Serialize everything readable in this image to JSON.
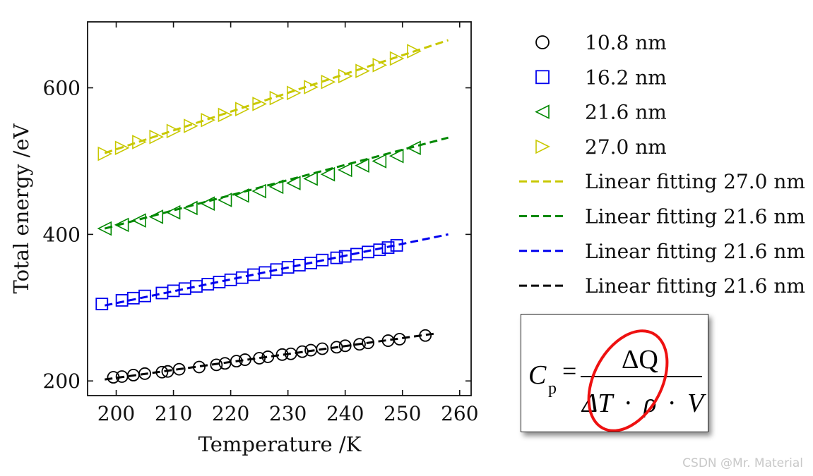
{
  "chart_data": {
    "type": "scatter",
    "xlabel": "Temperature /K",
    "ylabel": "Total energy /eV",
    "xlim": [
      195,
      262
    ],
    "ylim": [
      180,
      690
    ],
    "xticks": [
      200,
      210,
      220,
      230,
      240,
      250,
      260
    ],
    "yticks": [
      200,
      400,
      600
    ],
    "grid": false,
    "legend_position": "right",
    "series": [
      {
        "name": "10.8 nm",
        "marker": "circle",
        "color": "#000000",
        "x": [
          199.5,
          201,
          203,
          205,
          208,
          209,
          211,
          214.5,
          217.5,
          219,
          221,
          222.5,
          225,
          226.5,
          229,
          230.5,
          232.5,
          234,
          236,
          238.5,
          240,
          242.5,
          244,
          247.5,
          249.5,
          254
        ],
        "y": [
          205,
          206,
          208,
          210,
          212,
          213,
          216,
          219,
          222,
          224,
          227,
          229,
          231,
          233,
          236,
          237,
          240,
          242,
          244,
          246,
          248,
          250,
          252,
          255,
          257,
          262
        ]
      },
      {
        "name": "16.2 nm",
        "marker": "square",
        "color": "#0000ee",
        "x": [
          197.5,
          201,
          203,
          205,
          208,
          210,
          212,
          214,
          216,
          218,
          220,
          222,
          224,
          226,
          228,
          230,
          232,
          234,
          236,
          238.5,
          240,
          242,
          244,
          246,
          247.5,
          249
        ],
        "y": [
          305,
          310,
          313,
          316,
          320,
          323,
          326,
          329,
          332,
          335,
          338,
          341,
          345,
          348,
          352,
          355,
          358,
          361,
          365,
          368,
          370,
          373,
          376,
          379,
          382,
          385
        ]
      },
      {
        "name": "21.6 nm",
        "marker": "triangle-left",
        "color": "#008800",
        "x": [
          198,
          201,
          204,
          207,
          210,
          213,
          216,
          219,
          222,
          225,
          228,
          231,
          234,
          237,
          240,
          243,
          246,
          249,
          252
        ],
        "y": [
          408,
          413,
          419,
          424,
          430,
          436,
          442,
          447,
          453,
          459,
          465,
          470,
          476,
          482,
          488,
          494,
          500,
          507,
          518
        ]
      },
      {
        "name": "27.0 nm",
        "marker": "triangle-right",
        "color": "#c8c800",
        "x": [
          198,
          201,
          204,
          207,
          210,
          213,
          216,
          219,
          222,
          225,
          228,
          231,
          234,
          237,
          240,
          243,
          246,
          249,
          252
        ],
        "y": [
          510,
          518,
          526,
          533,
          541,
          548,
          556,
          563,
          571,
          578,
          586,
          593,
          601,
          608,
          616,
          623,
          631,
          640,
          650
        ]
      }
    ],
    "fits": [
      {
        "name": "Linear fitting 27.0 nm",
        "color": "#c8c800",
        "x": [
          198,
          258
        ],
        "y": [
          511,
          665
        ]
      },
      {
        "name": "Linear fitting 21.6 nm",
        "color": "#008800",
        "x": [
          198,
          258
        ],
        "y": [
          408,
          532
        ]
      },
      {
        "name": "Linear fitting 21.6 nm",
        "color": "#0000ee",
        "x": [
          198,
          258
        ],
        "y": [
          303,
          400
        ]
      },
      {
        "name": "Linear fitting 21.6 nm",
        "color": "#000000",
        "x": [
          198,
          256
        ],
        "y": [
          202,
          265
        ]
      }
    ]
  },
  "formula": {
    "lhs": "C",
    "lhs_sub": "p",
    "equals": "=",
    "numerator": "ΔQ",
    "den_delta_t": "ΔT",
    "den_dot1": "·",
    "den_rho": "ρ",
    "den_dot2": "·",
    "den_v": "V",
    "highlight_color": "#ee1111"
  },
  "watermark": "CSDN @Mr. Material"
}
